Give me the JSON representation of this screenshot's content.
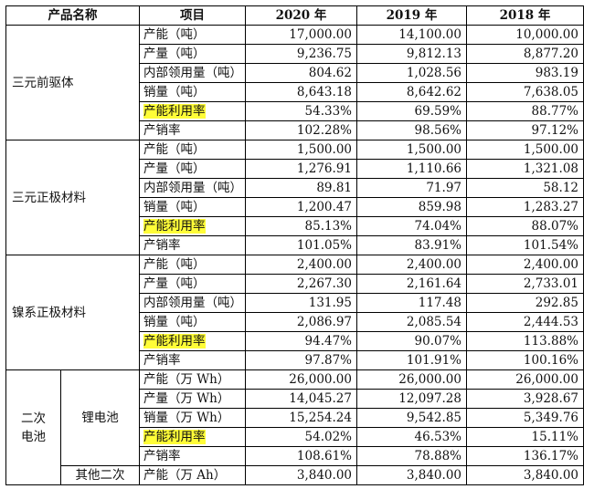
{
  "headers": {
    "product": "产品名称",
    "item": "项目",
    "y2020": "2020 年",
    "y2019": "2019 年",
    "y2018": "2018 年"
  },
  "groups": [
    {
      "name": "三元前驱体",
      "rows": [
        {
          "item": "产能（吨）",
          "v2020": "17,000.00",
          "v2019": "14,100.00",
          "v2018": "10,000.00"
        },
        {
          "item": "产量（吨）",
          "v2020": "9,236.75",
          "v2019": "9,812.13",
          "v2018": "8,877.20"
        },
        {
          "item": "内部领用量（吨）",
          "v2020": "804.62",
          "v2019": "1,028.56",
          "v2018": "983.19"
        },
        {
          "item": "销量（吨）",
          "v2020": "8,643.18",
          "v2019": "8,642.62",
          "v2018": "7,638.05"
        },
        {
          "item": "产能利用率",
          "v2020": "54.33%",
          "v2019": "69.59%",
          "v2018": "88.77%",
          "highlight": true
        },
        {
          "item": "产销率",
          "v2020": "102.28%",
          "v2019": "98.56%",
          "v2018": "97.12%"
        }
      ]
    },
    {
      "name": "三元正极材料",
      "rows": [
        {
          "item": "产能（吨）",
          "v2020": "1,500.00",
          "v2019": "1,500.00",
          "v2018": "1,500.00"
        },
        {
          "item": "产量（吨）",
          "v2020": "1,276.91",
          "v2019": "1,110.66",
          "v2018": "1,321.08"
        },
        {
          "item": "内部领用量（吨）",
          "v2020": "89.81",
          "v2019": "71.97",
          "v2018": "58.12"
        },
        {
          "item": "销量（吨）",
          "v2020": "1,200.47",
          "v2019": "859.98",
          "v2018": "1,283.27"
        },
        {
          "item": "产能利用率",
          "v2020": "85.13%",
          "v2019": "74.04%",
          "v2018": "88.07%",
          "highlight": true
        },
        {
          "item": "产销率",
          "v2020": "101.05%",
          "v2019": "83.91%",
          "v2018": "101.54%"
        }
      ]
    },
    {
      "name": "镍系正极材料",
      "rows": [
        {
          "item": "产能（吨）",
          "v2020": "2,400.00",
          "v2019": "2,400.00",
          "v2018": "2,400.00"
        },
        {
          "item": "产量（吨）",
          "v2020": "2,267.30",
          "v2019": "2,161.64",
          "v2018": "2,733.01"
        },
        {
          "item": "内部领用量（吨）",
          "v2020": "131.95",
          "v2019": "117.48",
          "v2018": "292.85"
        },
        {
          "item": "销量（吨）",
          "v2020": "2,086.97",
          "v2019": "2,085.54",
          "v2018": "2,444.53"
        },
        {
          "item": "产能利用率",
          "v2020": "94.47%",
          "v2019": "90.07%",
          "v2018": "113.88%",
          "highlight": true
        },
        {
          "item": "产销率",
          "v2020": "97.87%",
          "v2019": "101.91%",
          "v2018": "100.16%"
        }
      ]
    }
  ],
  "battery": {
    "name": "二次电池",
    "subgroups": [
      {
        "name": "锂电池",
        "rows": [
          {
            "item": "产能（万 Wh）",
            "v2020": "26,000.00",
            "v2019": "26,000.00",
            "v2018": "26,000.00"
          },
          {
            "item": "产量（万 Wh）",
            "v2020": "14,045.27",
            "v2019": "12,097.28",
            "v2018": "3,928.67"
          },
          {
            "item": "销量（万 Wh）",
            "v2020": "15,254.24",
            "v2019": "9,542.85",
            "v2018": "5,349.76"
          },
          {
            "item": "产能利用率",
            "v2020": "54.02%",
            "v2019": "46.53%",
            "v2018": "15.11%",
            "highlight": true
          },
          {
            "item": "产销率",
            "v2020": "108.61%",
            "v2019": "78.88%",
            "v2018": "136.17%"
          }
        ]
      },
      {
        "name": "其他二次",
        "rows": [
          {
            "item": "产能（万 Ah）",
            "v2020": "3,840.00",
            "v2019": "3,840.00",
            "v2018": "3,840.00"
          }
        ]
      }
    ]
  }
}
